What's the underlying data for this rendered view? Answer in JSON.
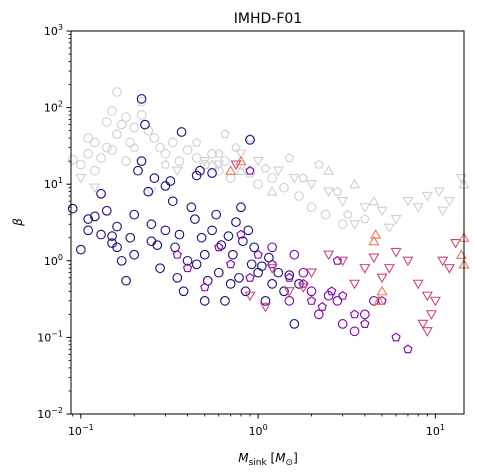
{
  "chart_data": {
    "type": "scatter",
    "title": "IMHD-F01",
    "xlabel": "M_sink [M_⊙]",
    "ylabel": "β",
    "xscale": "log",
    "yscale": "log",
    "xlim": [
      0.088,
      14.5
    ],
    "ylim": [
      0.01,
      1000
    ],
    "x_ticks": [
      {
        "value": 0.1,
        "base": "10",
        "exp": "−1"
      },
      {
        "value": 1,
        "base": "10",
        "exp": "0"
      },
      {
        "value": 10,
        "base": "10",
        "exp": "1"
      }
    ],
    "y_ticks": [
      {
        "value": 0.01,
        "base": "10",
        "exp": "−2"
      },
      {
        "value": 0.1,
        "base": "10",
        "exp": "−1"
      },
      {
        "value": 1,
        "base": "10",
        "exp": "0"
      },
      {
        "value": 10,
        "base": "10",
        "exp": "1"
      },
      {
        "value": 100,
        "base": "10",
        "exp": "2"
      },
      {
        "value": 1000,
        "base": "10",
        "exp": "3"
      }
    ],
    "grid": false,
    "legend": "none",
    "series": [
      {
        "marker": "circle",
        "color": "#d0d0d0",
        "points": [
          [
            0.09,
            21
          ],
          [
            0.1,
            18
          ],
          [
            0.11,
            25
          ],
          [
            0.12,
            15
          ],
          [
            0.13,
            22
          ],
          [
            0.14,
            30
          ],
          [
            0.15,
            28
          ],
          [
            0.16,
            45
          ],
          [
            0.17,
            60
          ],
          [
            0.18,
            20
          ],
          [
            0.19,
            35
          ],
          [
            0.2,
            55
          ],
          [
            0.22,
            80
          ],
          [
            0.24,
            50
          ],
          [
            0.26,
            40
          ],
          [
            0.28,
            30
          ],
          [
            0.3,
            25
          ],
          [
            0.33,
            35
          ],
          [
            0.36,
            20
          ],
          [
            0.4,
            28
          ],
          [
            0.45,
            22
          ],
          [
            0.5,
            18
          ],
          [
            0.55,
            25
          ],
          [
            0.6,
            15
          ],
          [
            0.65,
            20
          ],
          [
            0.7,
            12
          ],
          [
            0.8,
            18
          ],
          [
            0.9,
            14
          ],
          [
            1.0,
            10
          ],
          [
            1.2,
            12
          ],
          [
            1.4,
            9
          ],
          [
            1.7,
            7
          ],
          [
            2.0,
            5
          ],
          [
            2.4,
            4
          ],
          [
            3.0,
            3
          ],
          [
            0.14,
            65
          ],
          [
            0.15,
            90
          ],
          [
            0.16,
            160
          ],
          [
            0.18,
            75
          ],
          [
            0.22,
            120
          ],
          [
            0.12,
            35
          ],
          [
            0.11,
            40
          ]
        ]
      },
      {
        "marker": "triangle-down",
        "color": "#d0d0d0",
        "points": [
          [
            0.1,
            12
          ],
          [
            0.12,
            9
          ],
          [
            0.25,
            8
          ],
          [
            0.35,
            15
          ],
          [
            0.5,
            20
          ],
          [
            0.6,
            18
          ],
          [
            0.8,
            25
          ],
          [
            1.0,
            20
          ],
          [
            1.3,
            15
          ],
          [
            1.6,
            12
          ],
          [
            2.0,
            10
          ],
          [
            2.5,
            8
          ],
          [
            3.0,
            6
          ],
          [
            4.0,
            5
          ],
          [
            5.0,
            4.5
          ],
          [
            6.0,
            3.5
          ],
          [
            7.0,
            6
          ],
          [
            8.0,
            5
          ],
          [
            9.0,
            7
          ],
          [
            10.5,
            8
          ],
          [
            12.0,
            6
          ],
          [
            14.0,
            12
          ],
          [
            11.0,
            4.5
          ],
          [
            3.5,
            3
          ],
          [
            5.5,
            2.7
          ]
        ]
      },
      {
        "marker": "pentagon",
        "color": "#d0d0d0",
        "points": [
          [
            0.2,
            30
          ],
          [
            0.3,
            18
          ],
          [
            0.45,
            35
          ],
          [
            0.6,
            25
          ],
          [
            0.75,
            30
          ],
          [
            1.1,
            16
          ],
          [
            1.5,
            22
          ],
          [
            1.8,
            12
          ],
          [
            2.2,
            18
          ],
          [
            2.8,
            8
          ],
          [
            3.2,
            4
          ],
          [
            4.0,
            3.5
          ],
          [
            0.65,
            45
          ],
          [
            0.9,
            40
          ]
        ]
      },
      {
        "marker": "triangle-up",
        "color": "#d0d0d0",
        "points": [
          [
            0.55,
            18
          ],
          [
            0.8,
            15
          ],
          [
            1.2,
            8
          ],
          [
            2.5,
            15
          ],
          [
            3.5,
            10
          ],
          [
            4.5,
            6
          ],
          [
            14.5,
            10
          ]
        ]
      },
      {
        "marker": "circle",
        "color": "#130f7a",
        "points": [
          [
            0.09,
            4.8
          ],
          [
            0.1,
            1.4
          ],
          [
            0.11,
            2.5
          ],
          [
            0.11,
            3.5
          ],
          [
            0.12,
            3.8
          ],
          [
            0.13,
            2.2
          ],
          [
            0.14,
            4.5
          ],
          [
            0.15,
            2.1
          ],
          [
            0.16,
            2.8
          ],
          [
            0.16,
            1.5
          ],
          [
            0.17,
            1.0
          ],
          [
            0.18,
            0.55
          ],
          [
            0.19,
            2.0
          ],
          [
            0.2,
            1.2
          ],
          [
            0.2,
            4.0
          ],
          [
            0.21,
            15
          ],
          [
            0.22,
            20
          ],
          [
            0.22,
            130
          ],
          [
            0.23,
            60
          ],
          [
            0.24,
            8.0
          ],
          [
            0.25,
            3.0
          ],
          [
            0.26,
            12
          ],
          [
            0.27,
            1.6
          ],
          [
            0.28,
            0.8
          ],
          [
            0.3,
            2.5
          ],
          [
            0.3,
            9.5
          ],
          [
            0.32,
            11
          ],
          [
            0.33,
            6.0
          ],
          [
            0.34,
            1.5
          ],
          [
            0.35,
            0.6
          ],
          [
            0.36,
            2.2
          ],
          [
            0.37,
            48
          ],
          [
            0.38,
            0.4
          ],
          [
            0.4,
            1.0
          ],
          [
            0.42,
            5.0
          ],
          [
            0.44,
            3.5
          ],
          [
            0.45,
            0.9
          ],
          [
            0.47,
            15
          ],
          [
            0.48,
            2.0
          ],
          [
            0.5,
            1.2
          ],
          [
            0.5,
            0.3
          ],
          [
            0.52,
            0.55
          ],
          [
            0.55,
            2.5
          ],
          [
            0.58,
            4.0
          ],
          [
            0.6,
            0.7
          ],
          [
            0.62,
            1.6
          ],
          [
            0.65,
            0.3
          ],
          [
            0.68,
            2.1
          ],
          [
            0.7,
            0.5
          ],
          [
            0.72,
            1.2
          ],
          [
            0.75,
            3.2
          ],
          [
            0.78,
            0.6
          ],
          [
            0.8,
            5.0
          ],
          [
            0.82,
            1.8
          ],
          [
            0.85,
            0.4
          ],
          [
            0.88,
            2.5
          ],
          [
            0.9,
            38
          ],
          [
            0.92,
            0.9
          ],
          [
            0.95,
            1.5
          ],
          [
            1.0,
            0.7
          ],
          [
            1.05,
            0.85
          ],
          [
            1.1,
            0.3
          ],
          [
            1.15,
            1.1
          ],
          [
            1.2,
            0.5
          ],
          [
            1.3,
            0.7
          ],
          [
            1.4,
            0.4
          ],
          [
            1.5,
            0.65
          ],
          [
            1.6,
            0.15
          ],
          [
            1.7,
            0.5
          ],
          [
            0.13,
            7.5
          ],
          [
            0.45,
            13
          ],
          [
            0.55,
            14
          ],
          [
            0.25,
            1.8
          ],
          [
            0.15,
            1.7
          ]
        ]
      },
      {
        "marker": "circle",
        "color": "#7e03a8",
        "points": [
          [
            1.2,
            1.5
          ],
          [
            1.5,
            0.3
          ],
          [
            1.8,
            0.7
          ],
          [
            2.0,
            0.4
          ],
          [
            2.2,
            0.2
          ],
          [
            2.5,
            0.35
          ],
          [
            2.8,
            0.3
          ],
          [
            3.0,
            0.15
          ],
          [
            3.5,
            0.12
          ],
          [
            4.0,
            0.2
          ],
          [
            4.5,
            0.3
          ],
          [
            1.6,
            1.2
          ]
        ]
      },
      {
        "marker": "pentagon",
        "color": "#7e03a8",
        "points": [
          [
            0.35,
            1.2
          ],
          [
            0.4,
            0.8
          ],
          [
            0.5,
            0.45
          ],
          [
            0.6,
            1.5
          ],
          [
            0.7,
            0.9
          ],
          [
            0.8,
            2.2
          ],
          [
            0.9,
            0.6
          ],
          [
            1.0,
            1.2
          ],
          [
            1.2,
            0.9
          ],
          [
            1.5,
            0.6
          ],
          [
            1.8,
            0.5
          ],
          [
            2.0,
            0.3
          ],
          [
            2.3,
            0.25
          ],
          [
            2.6,
            0.4
          ],
          [
            3.0,
            0.35
          ],
          [
            3.5,
            0.2
          ],
          [
            4.0,
            0.15
          ],
          [
            5.0,
            0.3
          ],
          [
            6.0,
            0.1
          ],
          [
            7.0,
            0.07
          ],
          [
            0.9,
            15
          ],
          [
            2.8,
            1.0
          ]
        ]
      },
      {
        "marker": "triangle-down",
        "color": "#cc4778",
        "points": [
          [
            0.9,
            0.35
          ],
          [
            1.2,
            0.8
          ],
          [
            1.5,
            0.4
          ],
          [
            1.8,
            0.45
          ],
          [
            2.0,
            0.7
          ],
          [
            2.5,
            1.2
          ],
          [
            3.0,
            1.0
          ],
          [
            3.5,
            0.5
          ],
          [
            4.0,
            0.8
          ],
          [
            4.5,
            1.1
          ],
          [
            5.0,
            0.6
          ],
          [
            5.5,
            0.8
          ],
          [
            6.0,
            1.3
          ],
          [
            7.0,
            1.0
          ],
          [
            8.0,
            0.5
          ],
          [
            9.0,
            0.35
          ],
          [
            9.5,
            0.2
          ],
          [
            10.0,
            0.3
          ],
          [
            11.0,
            1.0
          ],
          [
            12.0,
            0.8
          ],
          [
            13.0,
            1.7
          ],
          [
            8.5,
            0.15
          ],
          [
            9.0,
            0.12
          ],
          [
            1.1,
            0.25
          ],
          [
            0.75,
            18
          ]
        ]
      },
      {
        "marker": "triangle-up",
        "color": "#ed7953",
        "points": [
          [
            0.7,
            15
          ],
          [
            0.8,
            20
          ],
          [
            4.5,
            1.8
          ],
          [
            4.6,
            2.2
          ],
          [
            4.8,
            0.3
          ],
          [
            5.0,
            0.4
          ],
          [
            14.0,
            1.2
          ],
          [
            14.5,
            2.0
          ],
          [
            14.5,
            0.9
          ]
        ]
      }
    ]
  }
}
